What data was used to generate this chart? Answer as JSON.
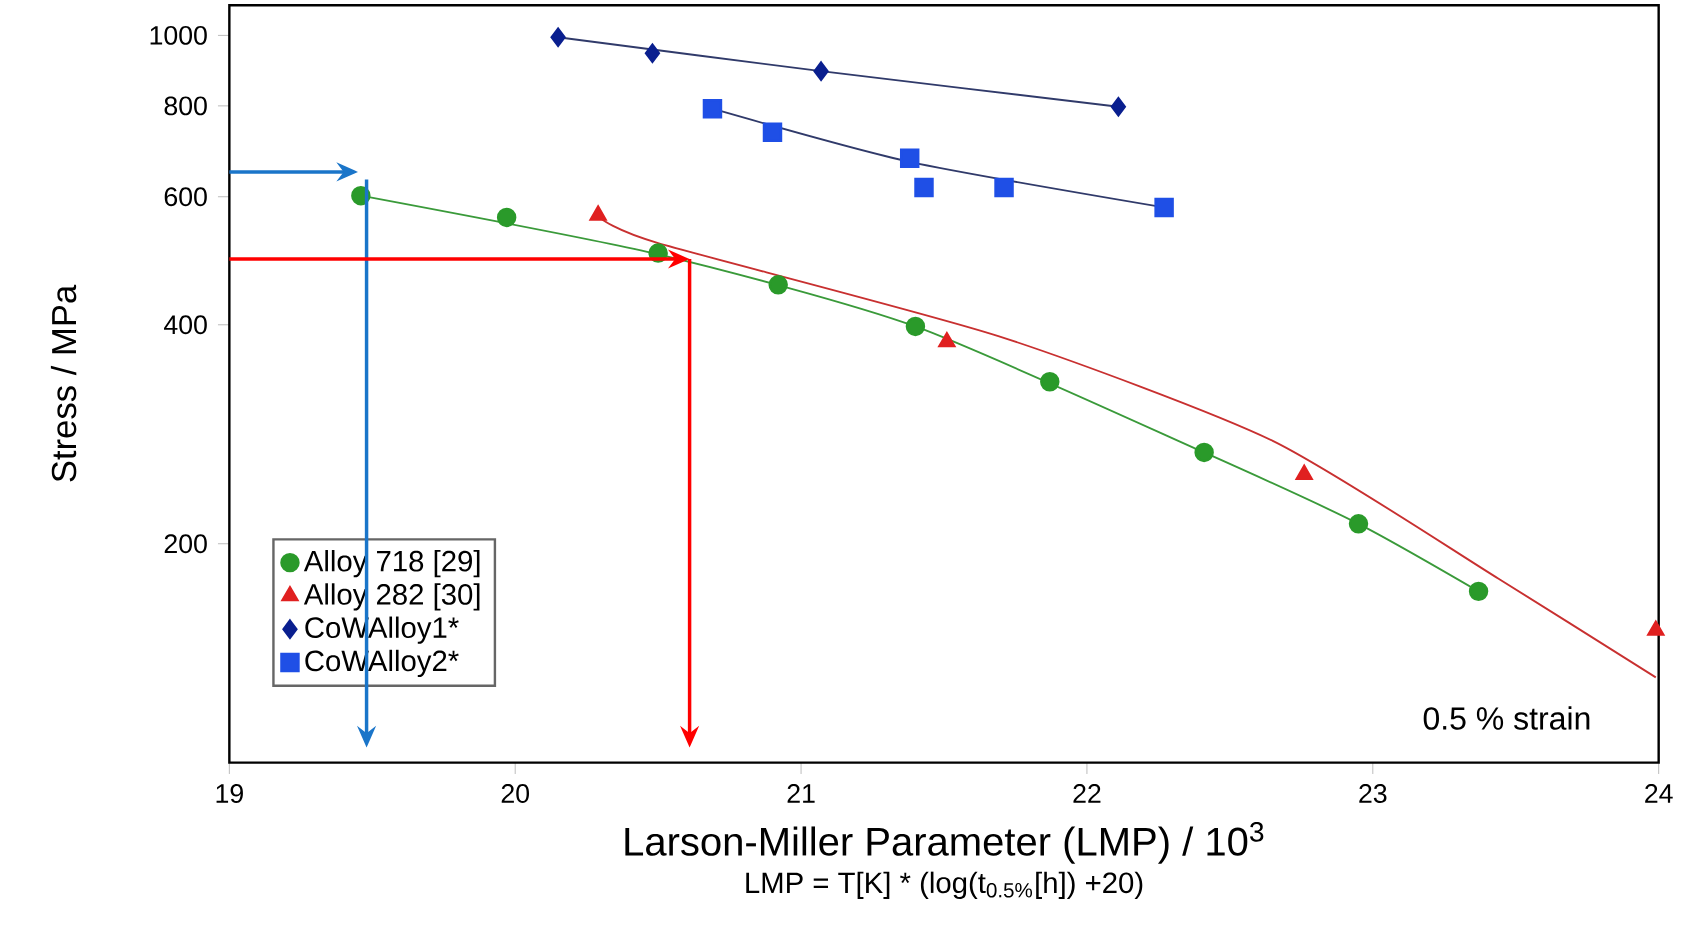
{
  "chart_data": {
    "type": "scatter",
    "xlabel": "Larson-Miller Parameter (LMP) / 10$^{3}$",
    "ylabel": "Stress / MPa",
    "annotations": [
      "0.5 % strain",
      "LMP = T[K] * (log(t$_{0.5%}$[h]) +20)"
    ],
    "xlim": [
      19,
      24
    ],
    "xticks": [
      19,
      20,
      21,
      22,
      23,
      24
    ],
    "ylim": [
      100,
      1100
    ],
    "yticks": [
      200,
      400,
      600,
      800,
      1000
    ],
    "log": "y",
    "legend": "bottom left",
    "series": [
      {
        "name": "Alloy 718 [29]",
        "marker": "circle",
        "color": "#2a9a2a",
        "x": [
          19.46,
          19.97,
          20.5,
          20.92,
          21.4,
          21.87,
          22.41,
          22.95,
          23.37
        ],
        "values": [
          602,
          562,
          502,
          454,
          398,
          334,
          267,
          213,
          172
        ]
      },
      {
        "name": "Alloy 282 [30]",
        "marker": "triangle",
        "color": "#e02020",
        "x": [
          20.29,
          21.51,
          22.76,
          23.99
        ],
        "values": [
          566,
          379,
          249,
          152
        ]
      },
      {
        "name": "CoWAlloy1*",
        "marker": "diamond",
        "color": "#0a1f8f",
        "x": [
          20.15,
          20.48,
          21.07,
          22.11
        ],
        "values": [
          994,
          945,
          893,
          798
        ]
      },
      {
        "name": "CoWAlloy2*",
        "marker": "square",
        "color": "#1f4fe6",
        "x": [
          20.69,
          20.9,
          21.38,
          21.43,
          21.71,
          22.27
        ],
        "values": [
          793,
          736,
          678,
          618,
          618,
          580
        ]
      },
      {
        "type": "line",
        "color": "#3a9a3a",
        "x": [
          19.46,
          20.5,
          21.4,
          22.41,
          22.95,
          23.37
        ],
        "values": [
          602,
          500,
          398,
          267,
          213,
          172
        ]
      },
      {
        "type": "line",
        "color": "#c83030",
        "x": [
          20.3,
          20.5,
          21.69,
          22.65,
          23.44,
          23.99
        ],
        "values": [
          560,
          518,
          386,
          277,
          179,
          131
        ]
      },
      {
        "type": "line",
        "color": "#303a6a",
        "x": [
          20.15,
          21.07,
          22.11
        ],
        "values": [
          994,
          893,
          798
        ]
      },
      {
        "type": "line",
        "color": "#303a6a",
        "x": [
          20.69,
          21.38,
          22.27
        ],
        "values": [
          793,
          670,
          580
        ]
      }
    ]
  }
}
